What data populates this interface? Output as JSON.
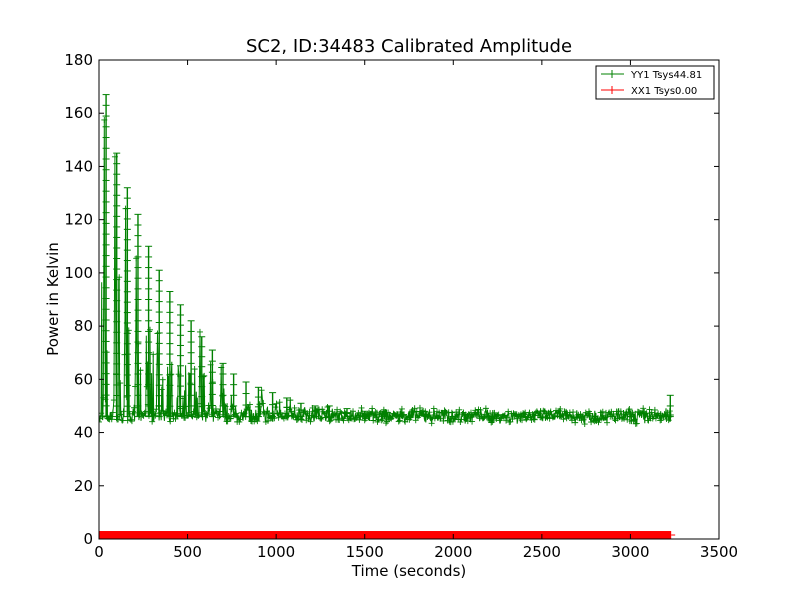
{
  "chart_data": {
    "type": "line",
    "title": "SC2, ID:34483 Calibrated Amplitude",
    "xlabel": "Time (seconds)",
    "ylabel": "Power in Kelvin",
    "xlim": [
      0,
      3500
    ],
    "ylim": [
      0,
      180
    ],
    "xticks": [
      "0",
      "500",
      "1000",
      "1500",
      "2000",
      "2500",
      "3000",
      "3500"
    ],
    "yticks": [
      "0",
      "20",
      "40",
      "60",
      "80",
      "100",
      "120",
      "140",
      "160",
      "180"
    ],
    "grid": false,
    "legend_position": "top-right",
    "series": [
      {
        "name": "YY1 Tsys44.81",
        "color": "#008000",
        "marker": "+",
        "baseline": 46,
        "x_end": 3230,
        "peaks": [
          {
            "x": 40,
            "y": 167
          },
          {
            "x": 100,
            "y": 145
          },
          {
            "x": 160,
            "y": 132
          },
          {
            "x": 220,
            "y": 122
          },
          {
            "x": 280,
            "y": 110
          },
          {
            "x": 340,
            "y": 101
          },
          {
            "x": 400,
            "y": 93
          },
          {
            "x": 460,
            "y": 88
          },
          {
            "x": 520,
            "y": 82
          },
          {
            "x": 580,
            "y": 76
          },
          {
            "x": 640,
            "y": 71
          },
          {
            "x": 700,
            "y": 66
          },
          {
            "x": 760,
            "y": 62
          },
          {
            "x": 830,
            "y": 59
          },
          {
            "x": 900,
            "y": 57
          },
          {
            "x": 980,
            "y": 55
          },
          {
            "x": 1060,
            "y": 53
          },
          {
            "x": 1140,
            "y": 51
          },
          {
            "x": 1220,
            "y": 50
          },
          {
            "x": 1300,
            "y": 50
          },
          {
            "x": 1400,
            "y": 49
          },
          {
            "x": 1500,
            "y": 48
          },
          {
            "x": 1600,
            "y": 48
          },
          {
            "x": 1700,
            "y": 47
          },
          {
            "x": 1850,
            "y": 47
          },
          {
            "x": 2000,
            "y": 46
          },
          {
            "x": 2200,
            "y": 46
          },
          {
            "x": 2400,
            "y": 46
          },
          {
            "x": 2600,
            "y": 46
          },
          {
            "x": 2800,
            "y": 46
          },
          {
            "x": 3000,
            "y": 46
          },
          {
            "x": 3180,
            "y": 46
          },
          {
            "x": 3225,
            "y": 54
          }
        ]
      },
      {
        "name": "XX1 Tsys0.00",
        "color": "#ff0000",
        "marker": "+",
        "x_start": 0,
        "x_end": 3230,
        "y_low": 0,
        "y_high": 3
      }
    ]
  }
}
